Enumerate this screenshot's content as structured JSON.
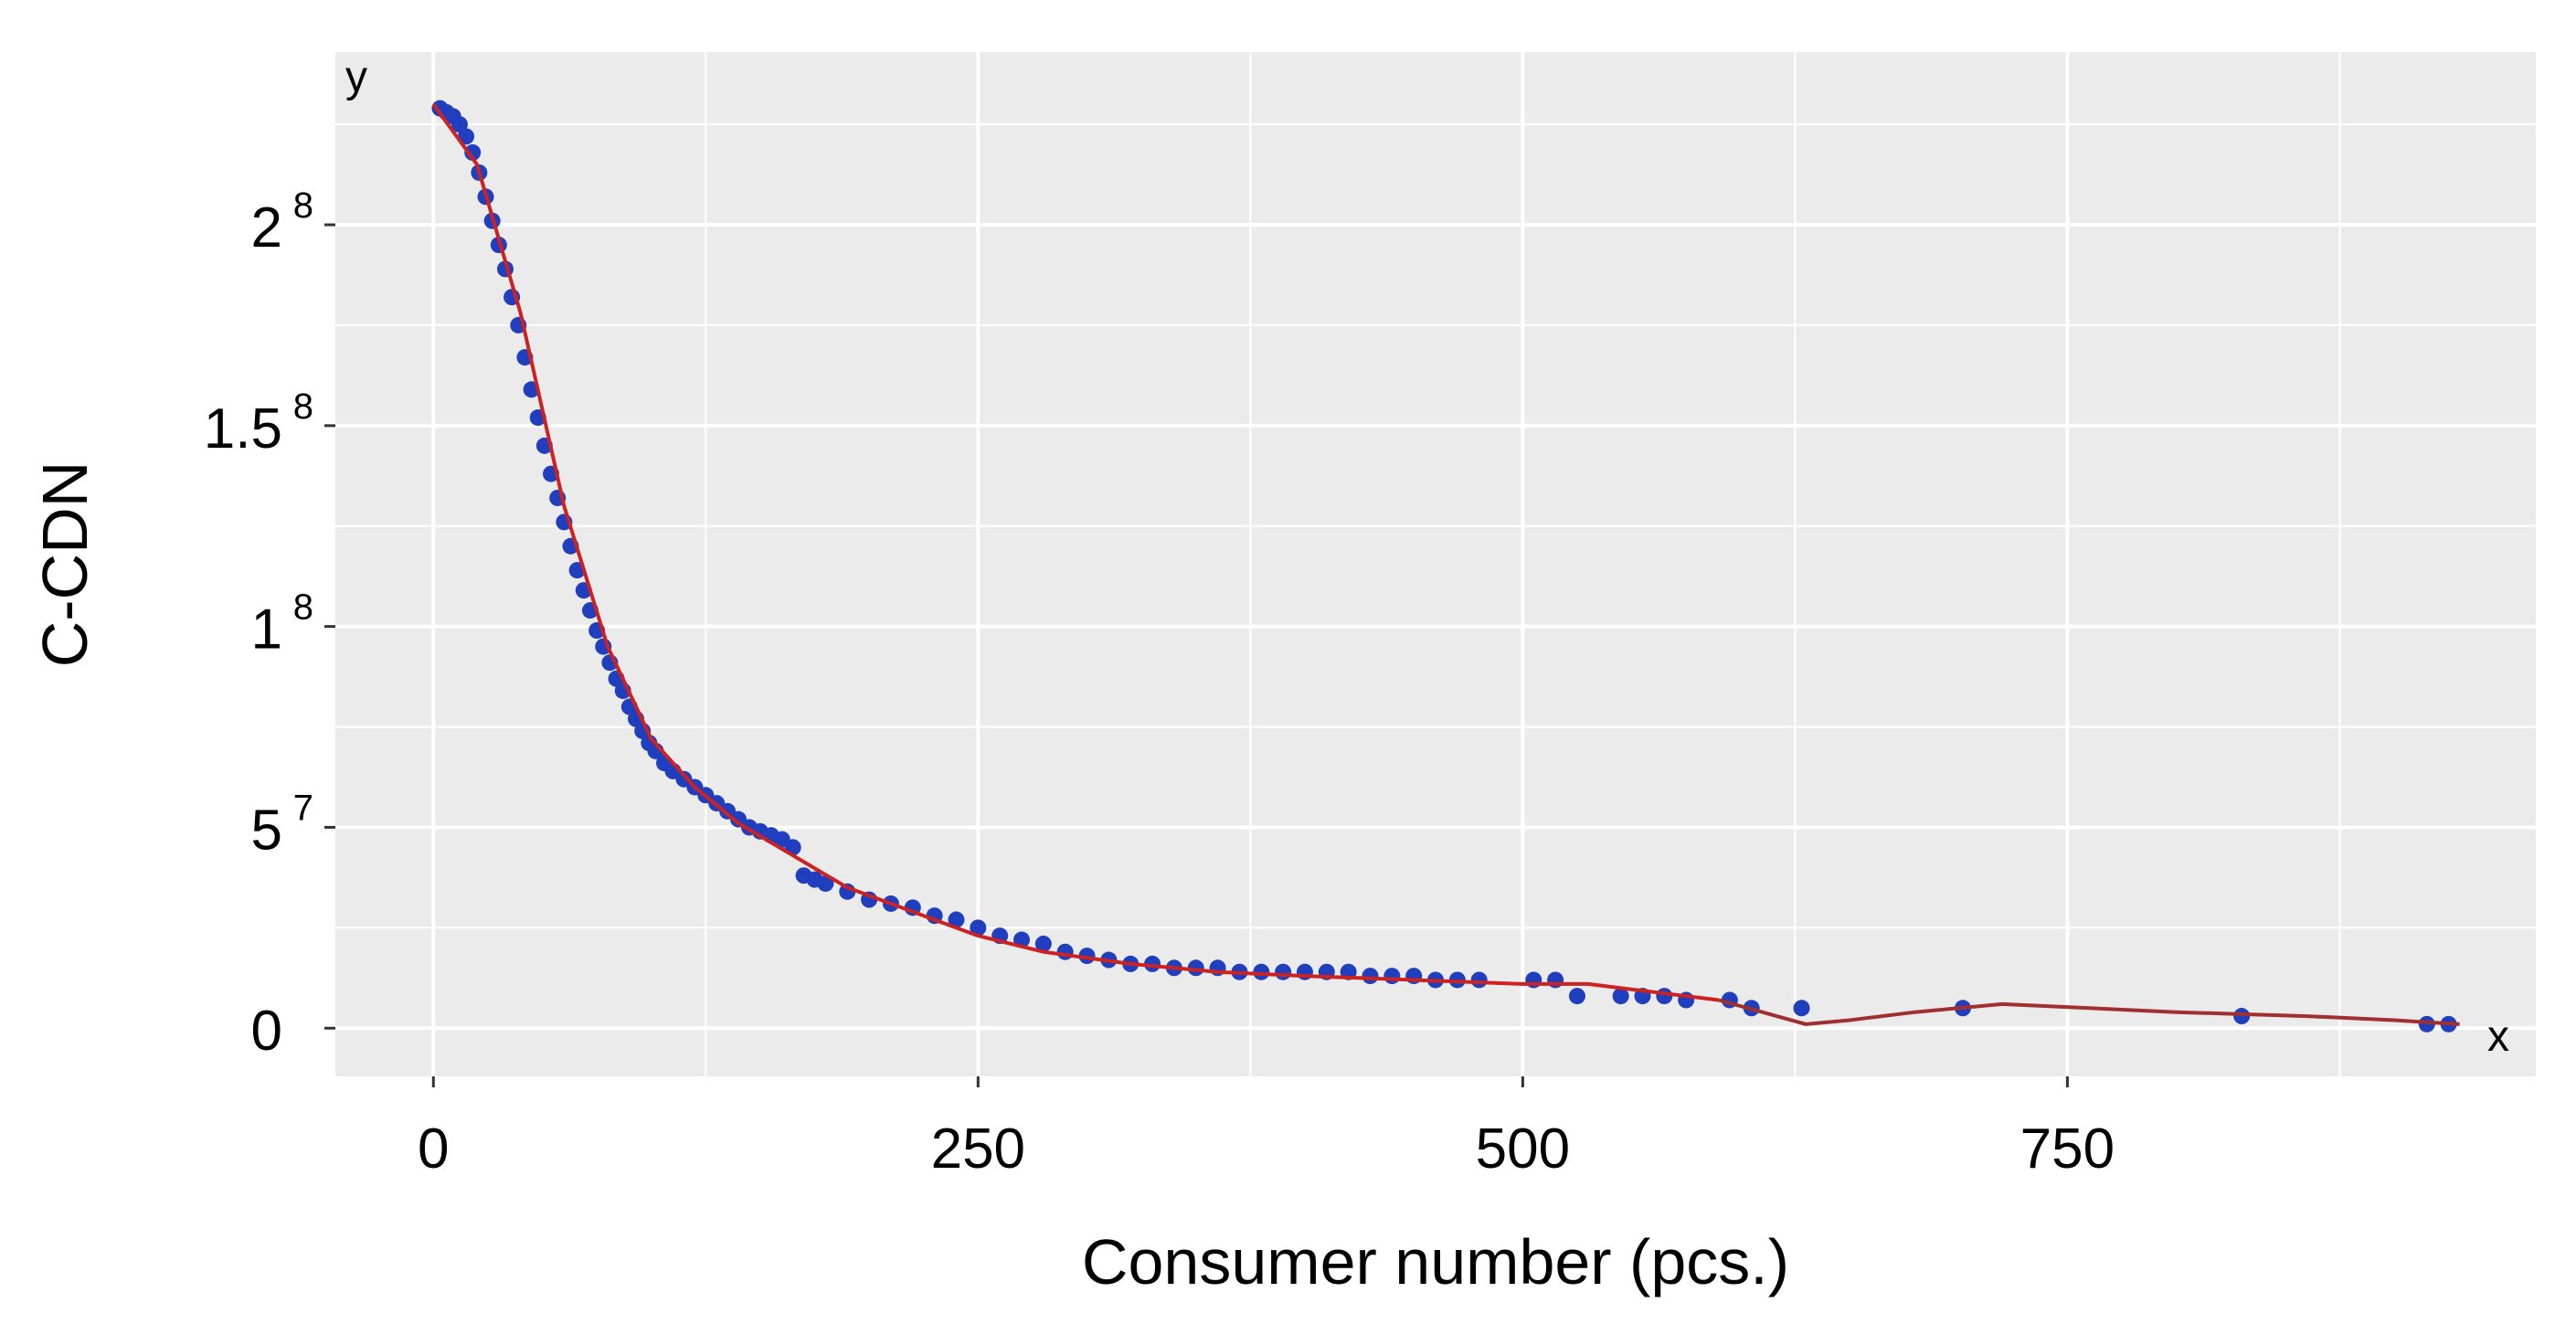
{
  "chart_data": {
    "type": "scatter",
    "xlabel": "Consumer number (pcs.)",
    "ylabel": "C-CDN",
    "x_axis_letter": "x",
    "y_axis_letter": "y",
    "xlim": [
      -45,
      965
    ],
    "ylim": [
      -0.12,
      2.43
    ],
    "grid": true,
    "x_ticks": [
      {
        "value": 0,
        "label": "0"
      },
      {
        "value": 250,
        "label": "250"
      },
      {
        "value": 500,
        "label": "500"
      },
      {
        "value": 750,
        "label": "750"
      }
    ],
    "y_ticks": [
      {
        "value": 0,
        "label": "0",
        "exp": ""
      },
      {
        "value": 0.5,
        "label": "5",
        "exp": "7"
      },
      {
        "value": 1.0,
        "label": "1",
        "exp": "8"
      },
      {
        "value": 1.5,
        "label": "1.5",
        "exp": "8"
      },
      {
        "value": 2.0,
        "label": "2",
        "exp": "8"
      }
    ],
    "colors": {
      "panel": "#ebebeb",
      "grid": "#ffffff",
      "points": "#1f3fbf",
      "fit_line": "#cc2222",
      "tail_line": "#a03030"
    },
    "series": [
      {
        "kind": "points",
        "points": [
          [
            3,
            2.29
          ],
          [
            6,
            2.28
          ],
          [
            9,
            2.27
          ],
          [
            12,
            2.25
          ],
          [
            15,
            2.22
          ],
          [
            18,
            2.18
          ],
          [
            21,
            2.13
          ],
          [
            24,
            2.07
          ],
          [
            27,
            2.01
          ],
          [
            30,
            1.95
          ],
          [
            33,
            1.89
          ],
          [
            36,
            1.82
          ],
          [
            39,
            1.75
          ],
          [
            42,
            1.67
          ],
          [
            45,
            1.59
          ],
          [
            48,
            1.52
          ],
          [
            51,
            1.45
          ],
          [
            54,
            1.38
          ],
          [
            57,
            1.32
          ],
          [
            60,
            1.26
          ],
          [
            63,
            1.2
          ],
          [
            66,
            1.14
          ],
          [
            69,
            1.09
          ],
          [
            72,
            1.04
          ],
          [
            75,
            0.99
          ],
          [
            78,
            0.95
          ],
          [
            81,
            0.91
          ],
          [
            84,
            0.87
          ],
          [
            87,
            0.84
          ],
          [
            90,
            0.8
          ],
          [
            93,
            0.77
          ],
          [
            96,
            0.74
          ],
          [
            99,
            0.71
          ],
          [
            102,
            0.69
          ],
          [
            106,
            0.66
          ],
          [
            110,
            0.64
          ],
          [
            115,
            0.62
          ],
          [
            120,
            0.6
          ],
          [
            125,
            0.58
          ],
          [
            130,
            0.56
          ],
          [
            135,
            0.54
          ],
          [
            140,
            0.52
          ],
          [
            145,
            0.5
          ],
          [
            150,
            0.49
          ],
          [
            155,
            0.48
          ],
          [
            160,
            0.47
          ],
          [
            165,
            0.45
          ],
          [
            170,
            0.38
          ],
          [
            175,
            0.37
          ],
          [
            180,
            0.36
          ],
          [
            190,
            0.34
          ],
          [
            200,
            0.32
          ],
          [
            210,
            0.31
          ],
          [
            220,
            0.3
          ],
          [
            230,
            0.28
          ],
          [
            240,
            0.27
          ],
          [
            250,
            0.25
          ],
          [
            260,
            0.23
          ],
          [
            270,
            0.22
          ],
          [
            280,
            0.21
          ],
          [
            290,
            0.19
          ],
          [
            300,
            0.18
          ],
          [
            310,
            0.17
          ],
          [
            320,
            0.16
          ],
          [
            330,
            0.16
          ],
          [
            340,
            0.15
          ],
          [
            350,
            0.15
          ],
          [
            360,
            0.15
          ],
          [
            370,
            0.14
          ],
          [
            380,
            0.14
          ],
          [
            390,
            0.14
          ],
          [
            400,
            0.14
          ],
          [
            410,
            0.14
          ],
          [
            420,
            0.14
          ],
          [
            430,
            0.13
          ],
          [
            440,
            0.13
          ],
          [
            450,
            0.13
          ],
          [
            460,
            0.12
          ],
          [
            470,
            0.12
          ],
          [
            480,
            0.12
          ],
          [
            505,
            0.12
          ],
          [
            515,
            0.12
          ],
          [
            525,
            0.08
          ],
          [
            545,
            0.08
          ],
          [
            555,
            0.08
          ],
          [
            565,
            0.08
          ],
          [
            575,
            0.07
          ],
          [
            595,
            0.07
          ],
          [
            605,
            0.05
          ],
          [
            628,
            0.05
          ],
          [
            702,
            0.05
          ],
          [
            830,
            0.03
          ],
          [
            915,
            0.01
          ],
          [
            925,
            0.01
          ]
        ]
      },
      {
        "kind": "line",
        "points": [
          [
            0,
            2.3
          ],
          [
            20,
            2.15
          ],
          [
            40,
            1.78
          ],
          [
            60,
            1.3
          ],
          [
            80,
            0.95
          ],
          [
            100,
            0.72
          ],
          [
            120,
            0.6
          ],
          [
            140,
            0.51
          ],
          [
            165,
            0.43
          ],
          [
            190,
            0.35
          ],
          [
            220,
            0.29
          ],
          [
            250,
            0.23
          ],
          [
            280,
            0.19
          ],
          [
            320,
            0.16
          ],
          [
            360,
            0.14
          ],
          [
            400,
            0.13
          ],
          [
            450,
            0.12
          ],
          [
            500,
            0.11
          ],
          [
            530,
            0.11
          ],
          [
            560,
            0.09
          ],
          [
            590,
            0.07
          ],
          [
            610,
            0.04
          ],
          [
            630,
            0.01
          ],
          [
            650,
            0.02
          ],
          [
            680,
            0.04
          ],
          [
            700,
            0.05
          ],
          [
            720,
            0.06
          ],
          [
            760,
            0.05
          ],
          [
            800,
            0.04
          ],
          [
            860,
            0.03
          ],
          [
            900,
            0.02
          ],
          [
            930,
            0.01
          ]
        ]
      }
    ]
  }
}
